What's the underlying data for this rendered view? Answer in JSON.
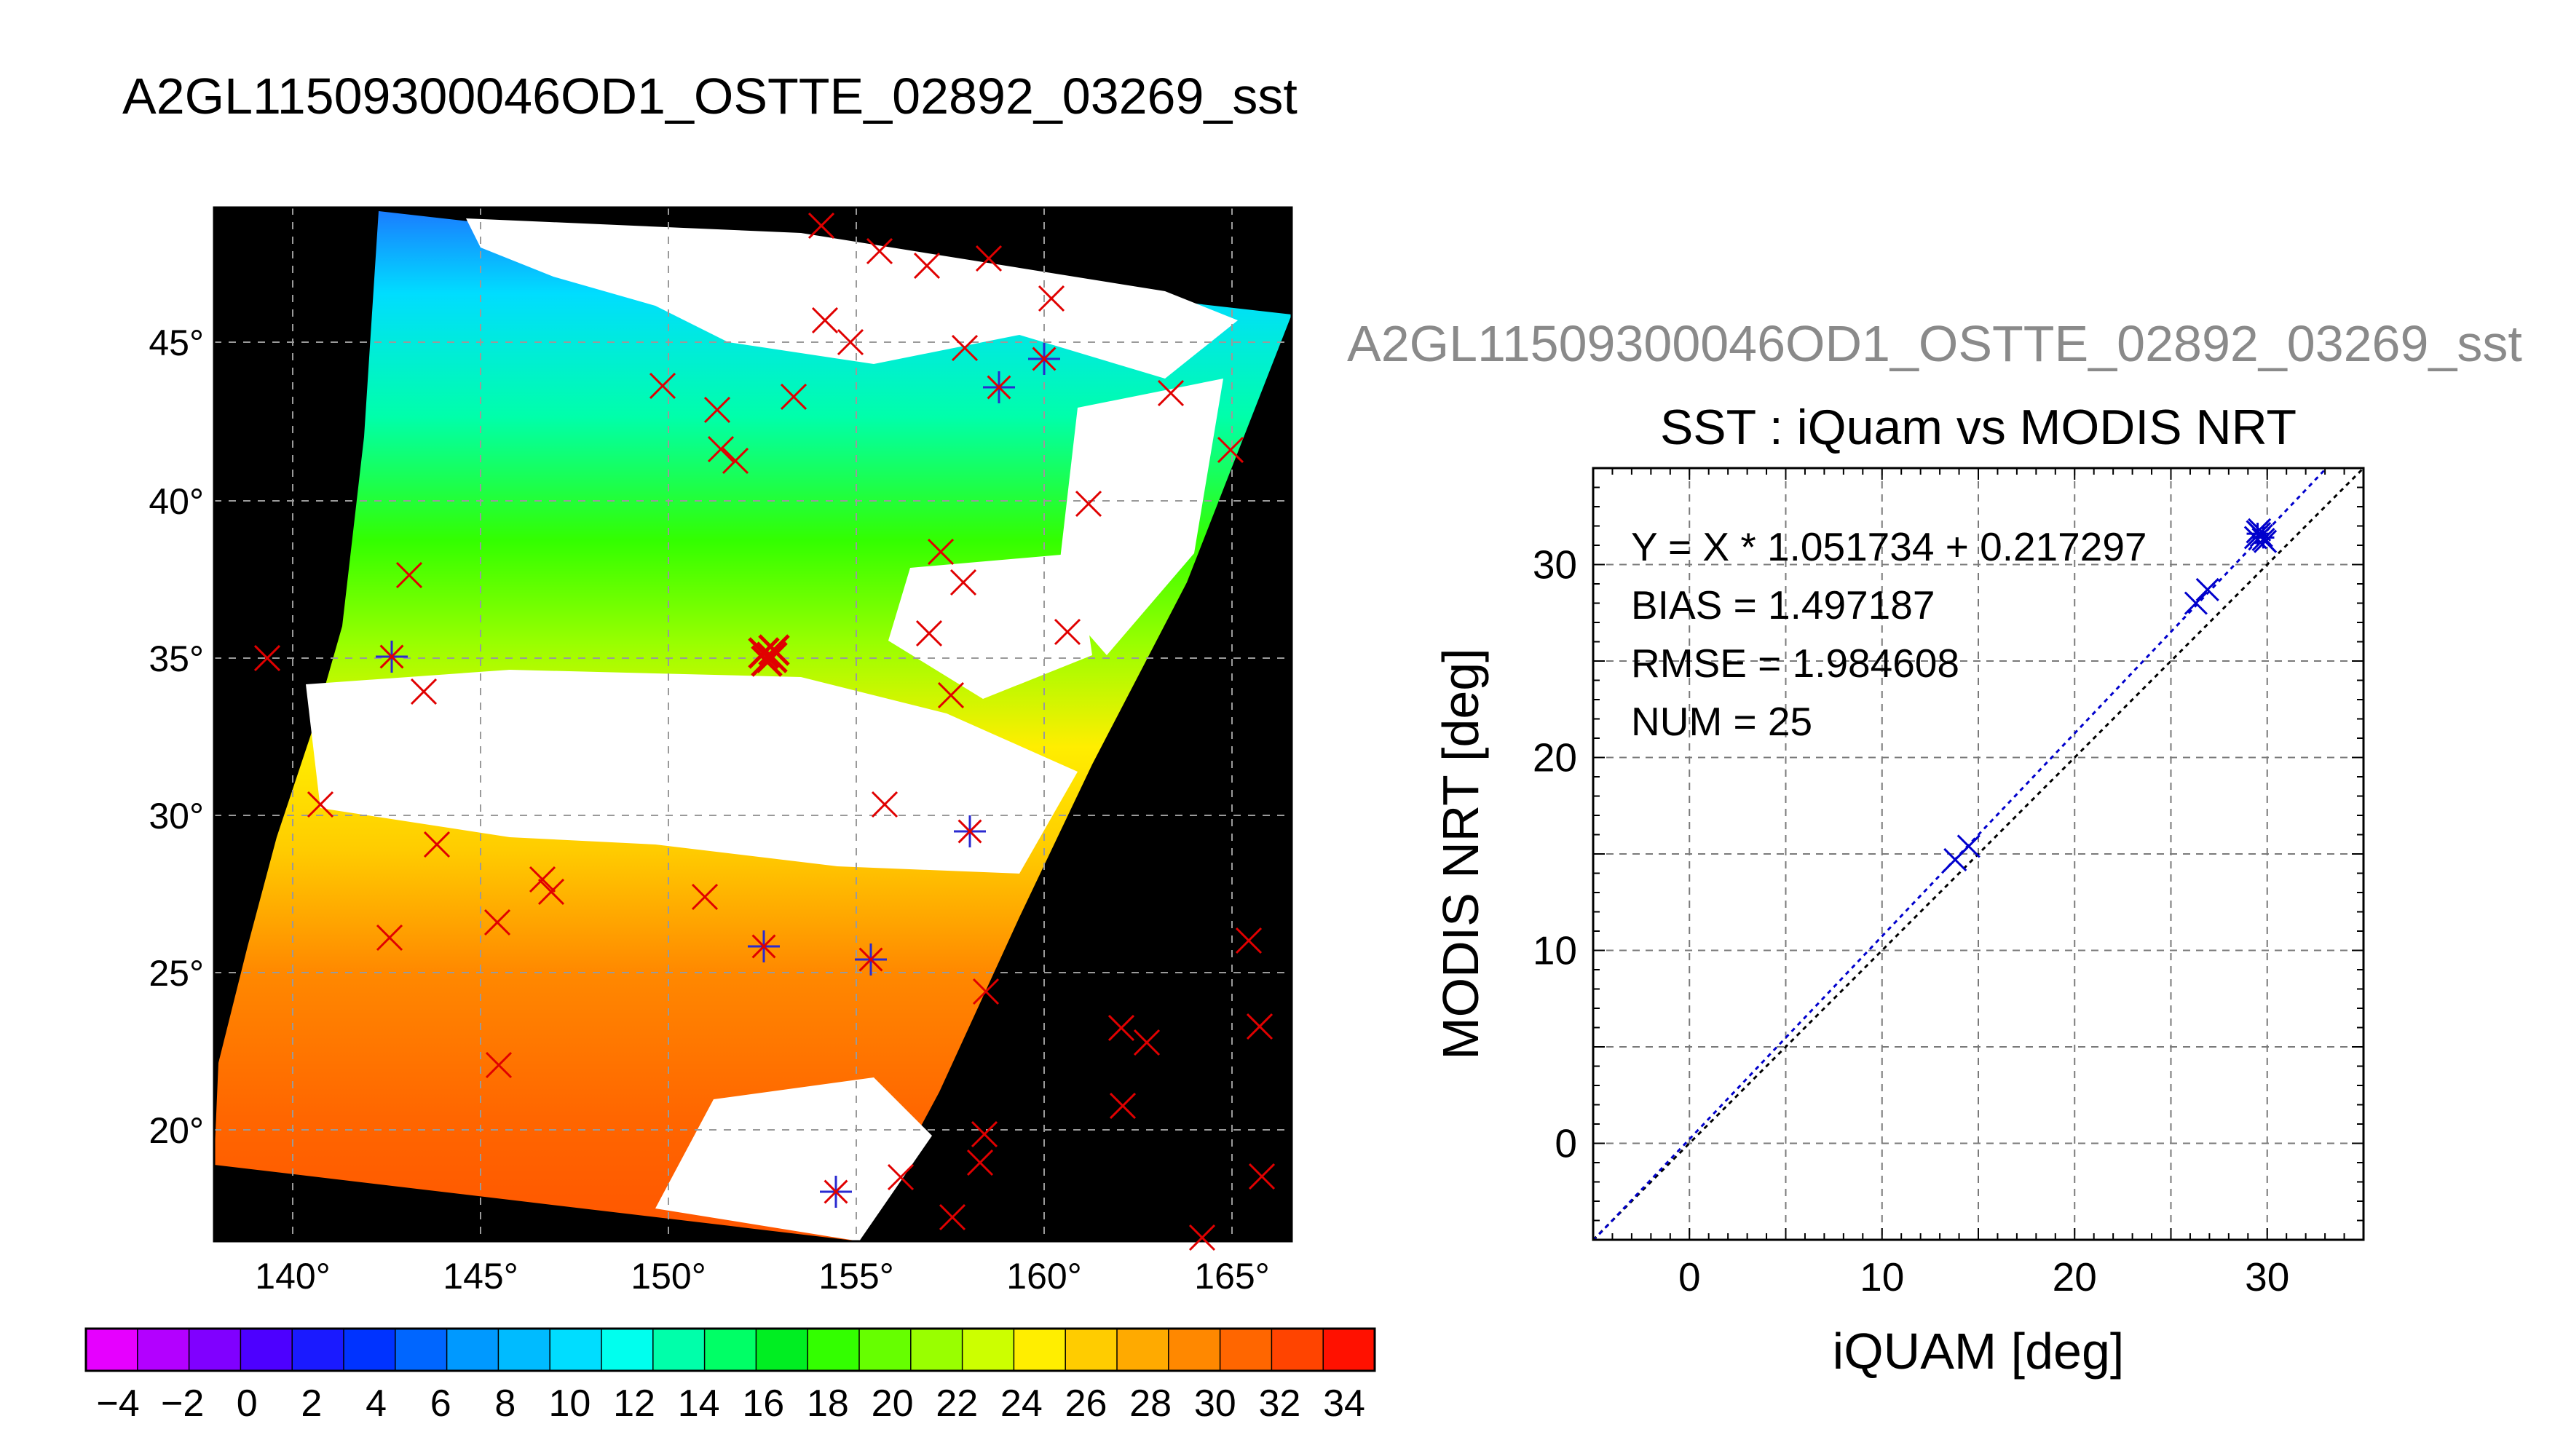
{
  "main_title": "A2GL11509300046OD1_OSTTE_02892_03269_sst",
  "scatter_file_title": "A2GL11509300046OD1_OSTTE_02892_03269_sst",
  "colors": {
    "match_marker": "#e00000",
    "clear_marker": "#2a2ad0",
    "fit_line": "#0000cc",
    "identity_line": "#000000",
    "file_title": "#8a8a8a"
  },
  "map": {
    "lon_ticks": [
      "140°",
      "145°",
      "150°",
      "155°",
      "160°",
      "165°"
    ],
    "lat_ticks": [
      "45°",
      "40°",
      "35°",
      "30°",
      "25°",
      "20°"
    ],
    "grid": true,
    "background": "#000000"
  },
  "colorbar": {
    "tick_labels": [
      "−4",
      "−2",
      "0",
      "2",
      "4",
      "6",
      "8",
      "10",
      "12",
      "14",
      "16",
      "18",
      "20",
      "22",
      "24",
      "26",
      "28",
      "30",
      "32",
      "34"
    ],
    "colors": [
      "#e600ff",
      "#b300ff",
      "#8000ff",
      "#4d00ff",
      "#1a1aff",
      "#0033ff",
      "#0066ff",
      "#0099ff",
      "#00bbff",
      "#00ddff",
      "#00ffee",
      "#00ffaa",
      "#00ff66",
      "#00ee22",
      "#33ff00",
      "#66ff00",
      "#99ff00",
      "#ccff00",
      "#ffee00",
      "#ffcc00",
      "#ffaa00",
      "#ff8800",
      "#ff6600",
      "#ff4400",
      "#ff1100"
    ]
  },
  "chart_data": {
    "type": "scatter",
    "title": "SST : iQuam vs MODIS NRT",
    "xlabel": "iQUAM [deg]",
    "ylabel": "MODIS NRT [deg]",
    "xlim": [
      -5,
      35
    ],
    "ylim": [
      -5,
      35
    ],
    "xticks": [
      0,
      10,
      20,
      30
    ],
    "yticks": [
      0,
      10,
      20,
      30
    ],
    "grid": true,
    "stats": [
      "Y = X * 1.051734 + 0.217297",
      "BIAS = 1.497187",
      "RMSE = 1.984608",
      "NUM = 25"
    ],
    "fit": {
      "slope": 1.051734,
      "intercept": 0.217297
    },
    "series": [
      {
        "marker": "x",
        "x": [
          13.8,
          14.5,
          26.3,
          26.9,
          29.4,
          29.6,
          29.8,
          29.5,
          29.7,
          29.9,
          29.6
        ],
        "y": [
          14.7,
          15.4,
          28.0,
          28.7,
          31.4,
          31.6,
          31.3,
          31.7,
          31.5,
          31.2,
          31.8
        ]
      },
      {
        "marker": "+",
        "x": [
          29.5,
          29.8
        ],
        "y": [
          31.6,
          31.4
        ]
      }
    ]
  }
}
